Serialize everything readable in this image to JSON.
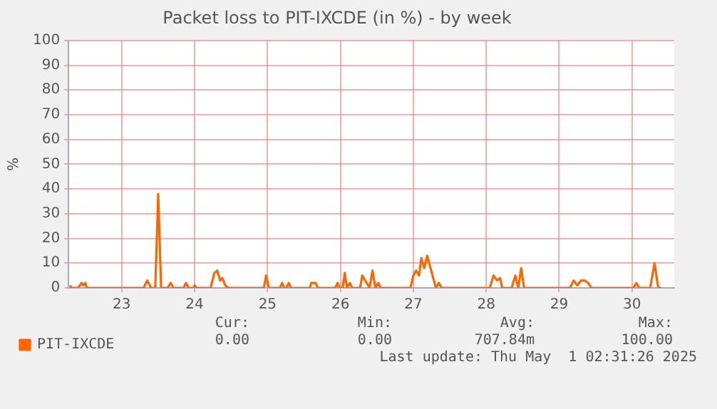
{
  "chart_data": {
    "type": "line",
    "title": "Packet loss to PIT-IXCDE (in %) - by week",
    "ylabel": "%",
    "xlim": [
      22.27,
      30.58
    ],
    "xticks": [
      23,
      24,
      25,
      26,
      27,
      28,
      29,
      30
    ],
    "ylim": [
      0,
      100
    ],
    "yticks": [
      0,
      10,
      20,
      30,
      40,
      50,
      60,
      70,
      80,
      90,
      100
    ],
    "grid": true,
    "legend": "bottom",
    "marker": "none",
    "line_style": "solid",
    "series": [
      {
        "name": "PIT-IXCDE",
        "color": "#ff6600",
        "x": [
          22.29,
          22.31,
          22.4,
          22.45,
          22.47,
          22.5,
          22.52,
          23.3,
          23.35,
          23.4,
          23.46,
          23.5,
          23.54,
          23.63,
          23.67,
          23.71,
          23.85,
          23.88,
          23.92,
          23.98,
          24.0,
          24.03,
          24.22,
          24.27,
          24.31,
          24.35,
          24.38,
          24.42,
          24.46,
          24.95,
          24.98,
          25.02,
          25.17,
          25.2,
          25.23,
          25.26,
          25.29,
          25.32,
          25.58,
          25.6,
          25.66,
          25.69,
          25.93,
          25.96,
          25.99,
          26.03,
          26.06,
          26.09,
          26.13,
          26.16,
          26.27,
          26.3,
          26.34,
          26.4,
          26.44,
          26.48,
          26.52,
          26.55,
          26.96,
          27.0,
          27.04,
          27.08,
          27.11,
          27.15,
          27.19,
          27.31,
          27.35,
          27.39,
          27.43,
          28.05,
          28.1,
          28.15,
          28.19,
          28.22,
          28.26,
          28.35,
          28.4,
          28.44,
          28.48,
          28.52,
          29.15,
          29.2,
          29.25,
          29.3,
          29.35,
          29.4,
          29.44,
          30.02,
          30.06,
          30.1,
          30.25,
          30.31,
          30.36,
          30.4
        ],
        "values": [
          1,
          0,
          0,
          2,
          1,
          2,
          0,
          0,
          3,
          0,
          0,
          38,
          0,
          0,
          2,
          0,
          0,
          2,
          0,
          0,
          1,
          0,
          0,
          6,
          7,
          3,
          4,
          1,
          0,
          0,
          5,
          0,
          0,
          2,
          0,
          0,
          2,
          0,
          0,
          2,
          2,
          0,
          0,
          2,
          0,
          0,
          6,
          0,
          2,
          0,
          0,
          5,
          3,
          0,
          7,
          0,
          2,
          0,
          0,
          5,
          7,
          5,
          12,
          8,
          13,
          0,
          2,
          0,
          0,
          0,
          5,
          3,
          4,
          0,
          0,
          0,
          5,
          0,
          8,
          0,
          0,
          3,
          1,
          3,
          3,
          2,
          0,
          0,
          2,
          0,
          0,
          10,
          0,
          0
        ]
      }
    ],
    "annotations": [
      "Cur:",
      "Min:",
      "Avg:",
      "Max:",
      "0.00",
      "0.00",
      "707.84m",
      "100.00",
      "Last update: Thu May  1 02:31:26 2025"
    ]
  }
}
